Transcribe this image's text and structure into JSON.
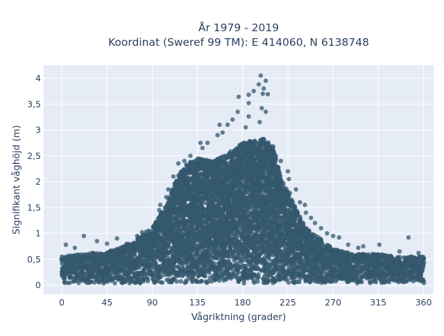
{
  "chart_data": {
    "type": "scatter",
    "title_lines": [
      "År 1979 - 2019",
      "Koordinat (Sweref 99 TM): E 414060, N 6138748"
    ],
    "xlabel": "Vågriktning (grader)",
    "ylabel": "Signifikant våghöjd (m)",
    "xlim": [
      -18,
      370
    ],
    "ylim": [
      -0.18,
      4.25
    ],
    "x_ticks": [
      0,
      45,
      90,
      135,
      180,
      225,
      270,
      315,
      360
    ],
    "x_tick_labels": [
      "0",
      "45",
      "90",
      "135",
      "180",
      "225",
      "270",
      "315",
      "360"
    ],
    "y_ticks": [
      0,
      0.5,
      1,
      1.5,
      2,
      2.5,
      3,
      3.5,
      4
    ],
    "y_tick_labels": [
      "0",
      "0,5",
      "1",
      "1,5",
      "2",
      "2,5",
      "3",
      "3,5",
      "4"
    ],
    "grid": true,
    "marker_color": "#34586e",
    "plot_background": "#e5ecf6",
    "upper_envelope": {
      "x": [
        0,
        20,
        45,
        60,
        75,
        90,
        105,
        115,
        125,
        135,
        150,
        160,
        170,
        180,
        190,
        200,
        210,
        220,
        230,
        240,
        250,
        260,
        270,
        290,
        315,
        340,
        360
      ],
      "y": [
        0.55,
        0.6,
        0.65,
        0.75,
        0.9,
        1.1,
        1.6,
        2.1,
        2.35,
        2.45,
        2.4,
        2.5,
        2.6,
        2.75,
        2.8,
        2.85,
        2.7,
        2.0,
        1.6,
        1.2,
        1.0,
        0.85,
        0.7,
        0.6,
        0.6,
        0.55,
        0.55
      ]
    },
    "outliers": [
      {
        "x": 198,
        "y": 4.05
      },
      {
        "x": 203,
        "y": 3.95
      },
      {
        "x": 196,
        "y": 3.88
      },
      {
        "x": 201,
        "y": 3.8
      },
      {
        "x": 200,
        "y": 3.7
      },
      {
        "x": 205,
        "y": 3.69
      },
      {
        "x": 186,
        "y": 3.68
      },
      {
        "x": 191,
        "y": 3.75
      },
      {
        "x": 176,
        "y": 3.64
      },
      {
        "x": 186,
        "y": 3.52
      },
      {
        "x": 175,
        "y": 3.35
      },
      {
        "x": 199,
        "y": 3.42
      },
      {
        "x": 203,
        "y": 3.35
      },
      {
        "x": 170,
        "y": 3.2
      },
      {
        "x": 186,
        "y": 3.26
      },
      {
        "x": 165,
        "y": 3.1
      },
      {
        "x": 157,
        "y": 3.1
      },
      {
        "x": 183,
        "y": 3.05
      },
      {
        "x": 197,
        "y": 3.15
      },
      {
        "x": 160,
        "y": 2.95
      },
      {
        "x": 155,
        "y": 2.9
      },
      {
        "x": 145,
        "y": 2.75
      },
      {
        "x": 140,
        "y": 2.65
      },
      {
        "x": 213,
        "y": 2.5
      },
      {
        "x": 218,
        "y": 2.4
      },
      {
        "x": 225,
        "y": 2.2
      },
      {
        "x": 226,
        "y": 2.05
      },
      {
        "x": 233,
        "y": 1.85
      },
      {
        "x": 227,
        "y": 1.78
      },
      {
        "x": 237,
        "y": 1.6
      },
      {
        "x": 242,
        "y": 1.55
      },
      {
        "x": 243,
        "y": 1.4
      },
      {
        "x": 248,
        "y": 1.3
      },
      {
        "x": 252,
        "y": 1.2
      },
      {
        "x": 258,
        "y": 1.1
      },
      {
        "x": 245,
        "y": 1.05
      },
      {
        "x": 264,
        "y": 1.0
      },
      {
        "x": 270,
        "y": 0.95
      },
      {
        "x": 276,
        "y": 0.92
      },
      {
        "x": 285,
        "y": 0.78
      },
      {
        "x": 295,
        "y": 0.72
      },
      {
        "x": 300,
        "y": 0.75
      },
      {
        "x": 316,
        "y": 0.78
      },
      {
        "x": 345,
        "y": 0.92
      },
      {
        "x": 336,
        "y": 0.65
      },
      {
        "x": 355,
        "y": 0.62
      },
      {
        "x": 97,
        "y": 1.45
      },
      {
        "x": 84,
        "y": 1.03
      },
      {
        "x": 80,
        "y": 1.02
      },
      {
        "x": 75,
        "y": 0.95
      },
      {
        "x": 55,
        "y": 0.9
      },
      {
        "x": 45,
        "y": 0.8
      },
      {
        "x": 35,
        "y": 0.85
      },
      {
        "x": 22,
        "y": 0.95
      },
      {
        "x": 4,
        "y": 0.78
      },
      {
        "x": 13,
        "y": 0.72
      },
      {
        "x": 98,
        "y": 1.55
      },
      {
        "x": 104,
        "y": 1.7
      },
      {
        "x": 106,
        "y": 1.85
      },
      {
        "x": 111,
        "y": 2.1
      },
      {
        "x": 116,
        "y": 2.35
      },
      {
        "x": 122,
        "y": 2.4
      },
      {
        "x": 128,
        "y": 2.5
      },
      {
        "x": 138,
        "y": 2.75
      }
    ]
  }
}
